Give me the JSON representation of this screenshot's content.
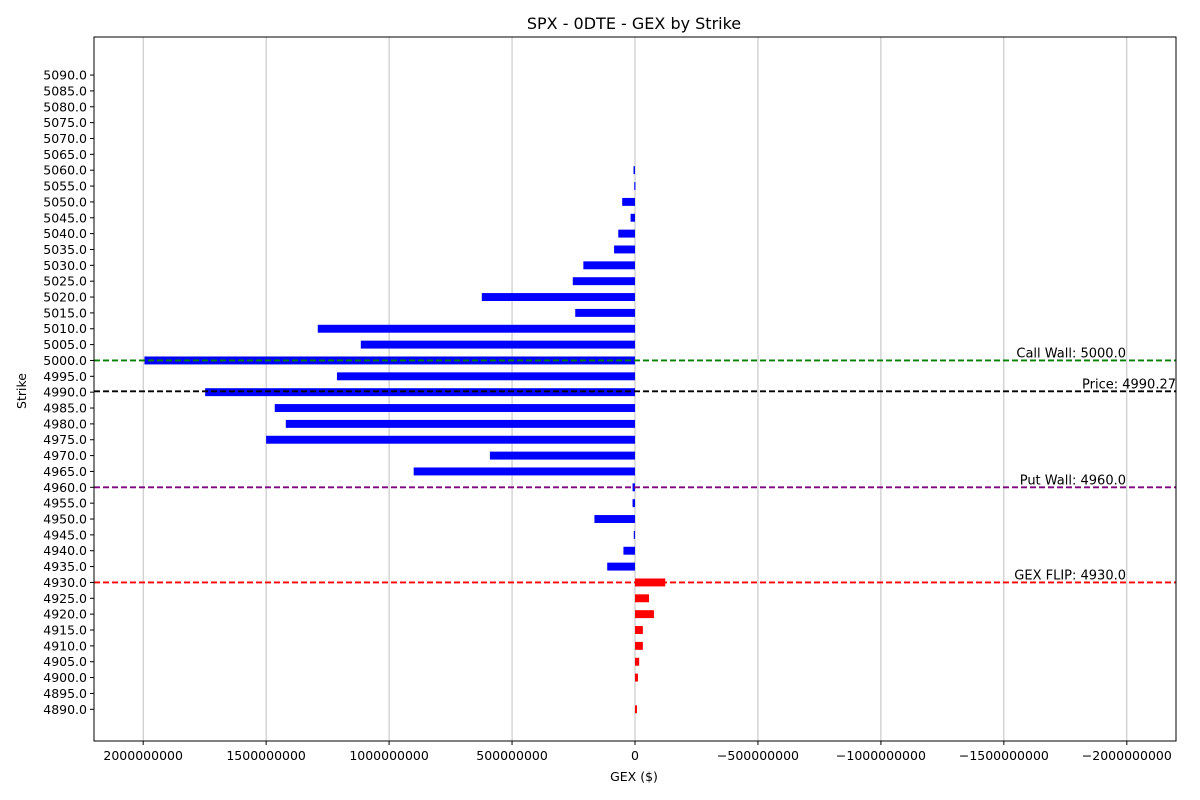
{
  "chart_data": {
    "type": "bar",
    "orientation": "horizontal",
    "title": "SPX - 0DTE - GEX by Strike",
    "xlabel": "GEX ($)",
    "ylabel": "Strike",
    "x_inverted": true,
    "xlim": [
      2200000000,
      -2200000000
    ],
    "xticks": [
      {
        "value": 2000000000,
        "label": "2000000000"
      },
      {
        "value": 1500000000,
        "label": "1500000000"
      },
      {
        "value": 1000000000,
        "label": "1000000000"
      },
      {
        "value": 500000000,
        "label": "500000000"
      },
      {
        "value": 0,
        "label": "0"
      },
      {
        "value": -500000000,
        "label": "−500000000"
      },
      {
        "value": -1000000000,
        "label": "−1000000000"
      },
      {
        "value": -1500000000,
        "label": "−1500000000"
      },
      {
        "value": -2000000000,
        "label": "−2000000000"
      }
    ],
    "ylim": [
      4880,
      5102
    ],
    "yticks": [
      {
        "value": 4890,
        "label": "4890.0"
      },
      {
        "value": 4895,
        "label": "4895.0"
      },
      {
        "value": 4900,
        "label": "4900.0"
      },
      {
        "value": 4905,
        "label": "4905.0"
      },
      {
        "value": 4910,
        "label": "4910.0"
      },
      {
        "value": 4915,
        "label": "4915.0"
      },
      {
        "value": 4920,
        "label": "4920.0"
      },
      {
        "value": 4925,
        "label": "4925.0"
      },
      {
        "value": 4930,
        "label": "4930.0"
      },
      {
        "value": 4935,
        "label": "4935.0"
      },
      {
        "value": 4940,
        "label": "4940.0"
      },
      {
        "value": 4945,
        "label": "4945.0"
      },
      {
        "value": 4950,
        "label": "4950.0"
      },
      {
        "value": 4955,
        "label": "4955.0"
      },
      {
        "value": 4960,
        "label": "4960.0"
      },
      {
        "value": 4965,
        "label": "4965.0"
      },
      {
        "value": 4970,
        "label": "4970.0"
      },
      {
        "value": 4975,
        "label": "4975.0"
      },
      {
        "value": 4980,
        "label": "4980.0"
      },
      {
        "value": 4985,
        "label": "4985.0"
      },
      {
        "value": 4990,
        "label": "4990.0"
      },
      {
        "value": 4995,
        "label": "4995.0"
      },
      {
        "value": 5000,
        "label": "5000.0"
      },
      {
        "value": 5005,
        "label": "5005.0"
      },
      {
        "value": 5010,
        "label": "5010.0"
      },
      {
        "value": 5015,
        "label": "5015.0"
      },
      {
        "value": 5020,
        "label": "5020.0"
      },
      {
        "value": 5025,
        "label": "5025.0"
      },
      {
        "value": 5030,
        "label": "5030.0"
      },
      {
        "value": 5035,
        "label": "5035.0"
      },
      {
        "value": 5040,
        "label": "5040.0"
      },
      {
        "value": 5045,
        "label": "5045.0"
      },
      {
        "value": 5050,
        "label": "5050.0"
      },
      {
        "value": 5055,
        "label": "5055.0"
      },
      {
        "value": 5060,
        "label": "5060.0"
      },
      {
        "value": 5065,
        "label": "5065.0"
      },
      {
        "value": 5070,
        "label": "5070.0"
      },
      {
        "value": 5075,
        "label": "5075.0"
      },
      {
        "value": 5080,
        "label": "5080.0"
      },
      {
        "value": 5085,
        "label": "5085.0"
      },
      {
        "value": 5090,
        "label": "5090.0"
      }
    ],
    "grid": "vertical",
    "colors": {
      "positive": "#0000ff",
      "negative": "#ff0000"
    },
    "bar_height_strike": 2.5,
    "bars": [
      {
        "strike": 4890,
        "gex": -8000000
      },
      {
        "strike": 4900,
        "gex": -12000000
      },
      {
        "strike": 4905,
        "gex": -17000000
      },
      {
        "strike": 4910,
        "gex": -32000000
      },
      {
        "strike": 4915,
        "gex": -32000000
      },
      {
        "strike": 4920,
        "gex": -77000000
      },
      {
        "strike": 4925,
        "gex": -57000000
      },
      {
        "strike": 4930,
        "gex": -123000000
      },
      {
        "strike": 4935,
        "gex": 113000000
      },
      {
        "strike": 4940,
        "gex": 47000000
      },
      {
        "strike": 4945,
        "gex": 5000000
      },
      {
        "strike": 4950,
        "gex": 165000000
      },
      {
        "strike": 4955,
        "gex": 10000000
      },
      {
        "strike": 4960,
        "gex": 10000000
      },
      {
        "strike": 4965,
        "gex": 900000000
      },
      {
        "strike": 4970,
        "gex": 590000000
      },
      {
        "strike": 4975,
        "gex": 1500000000
      },
      {
        "strike": 4980,
        "gex": 1420000000
      },
      {
        "strike": 4985,
        "gex": 1465000000
      },
      {
        "strike": 4990,
        "gex": 1748000000
      },
      {
        "strike": 4995,
        "gex": 1212000000
      },
      {
        "strike": 5000,
        "gex": 1995000000
      },
      {
        "strike": 5005,
        "gex": 1115000000
      },
      {
        "strike": 5010,
        "gex": 1290000000
      },
      {
        "strike": 5015,
        "gex": 243000000
      },
      {
        "strike": 5020,
        "gex": 623000000
      },
      {
        "strike": 5025,
        "gex": 253000000
      },
      {
        "strike": 5030,
        "gex": 210000000
      },
      {
        "strike": 5035,
        "gex": 85000000
      },
      {
        "strike": 5040,
        "gex": 68000000
      },
      {
        "strike": 5045,
        "gex": 18000000
      },
      {
        "strike": 5050,
        "gex": 52000000
      },
      {
        "strike": 5055,
        "gex": 3000000
      },
      {
        "strike": 5060,
        "gex": 6000000
      }
    ],
    "reference_lines": [
      {
        "name": "call-wall",
        "strike": 5000,
        "color": "#008000",
        "label": "Call Wall: 5000.0"
      },
      {
        "name": "price",
        "strike": 4990.27,
        "color": "#000000",
        "label": "Price: 4990.27"
      },
      {
        "name": "put-wall",
        "strike": 4960,
        "color": "#800080",
        "label": "Put Wall: 4960.0"
      },
      {
        "name": "gex-flip",
        "strike": 4930,
        "color": "#ff0000",
        "label": "GEX FLIP: 4930.0"
      }
    ]
  }
}
